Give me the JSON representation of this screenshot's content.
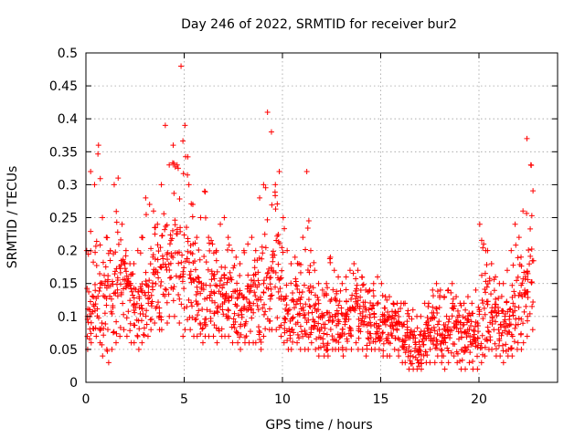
{
  "chart_data": {
    "type": "scatter",
    "title": "Day 246 of 2022, SRMTID for receiver bur2",
    "xlabel": "GPS time / hours",
    "ylabel": "SRMTID / TECUs",
    "xlim": [
      0,
      24
    ],
    "ylim": [
      0,
      0.5
    ],
    "xticks": [
      0,
      5,
      10,
      15,
      20
    ],
    "xtick_labels": [
      "0",
      "5",
      "10",
      "15",
      "20"
    ],
    "yticks": [
      0,
      0.05,
      0.1,
      0.15,
      0.2,
      0.25,
      0.3,
      0.35,
      0.4,
      0.45,
      0.5
    ],
    "ytick_labels": [
      "0",
      "0.05",
      "0.1",
      "0.15",
      "0.2",
      "0.25",
      "0.3",
      "0.35",
      "0.4",
      "0.45",
      "0.5"
    ],
    "grid": true,
    "marker": "plus",
    "color": "#ff0000",
    "series": [
      {
        "name": "SRMTID",
        "x_range": [
          0.0,
          22.8
        ],
        "x": [
          0.1,
          0.3,
          0.5,
          0.7,
          0.9,
          1.1,
          1.3,
          1.5,
          1.7,
          1.9,
          2.1,
          2.3,
          2.5,
          2.7,
          2.9,
          3.1,
          3.3,
          3.5,
          3.7,
          3.9,
          4.1,
          4.3,
          4.5,
          4.7,
          4.9,
          5.1,
          5.3,
          5.5,
          5.7,
          5.9,
          6.1,
          6.3,
          6.5,
          6.7,
          6.9,
          7.1,
          7.3,
          7.5,
          7.7,
          7.9,
          8.1,
          8.3,
          8.5,
          8.7,
          8.9,
          9.1,
          9.3,
          9.5,
          9.7,
          9.9,
          10.1,
          10.3,
          10.5,
          10.7,
          10.9,
          11.1,
          11.3,
          11.5,
          11.7,
          11.9,
          12.1,
          12.3,
          12.5,
          12.7,
          12.9,
          13.1,
          13.3,
          13.5,
          13.7,
          13.9,
          14.1,
          14.3,
          14.5,
          14.7,
          14.9,
          15.1,
          15.3,
          15.5,
          15.7,
          15.9,
          16.1,
          16.3,
          16.5,
          16.7,
          16.9,
          17.1,
          17.3,
          17.5,
          17.7,
          17.9,
          18.1,
          18.3,
          18.5,
          18.7,
          18.9,
          19.1,
          19.3,
          19.5,
          19.7,
          19.9,
          20.1,
          20.3,
          20.5,
          20.7,
          20.9,
          21.1,
          21.3,
          21.5,
          21.7,
          21.9,
          22.1,
          22.3,
          22.5,
          22.7
        ],
        "median": [
          0.09,
          0.1,
          0.11,
          0.12,
          0.11,
          0.1,
          0.11,
          0.12,
          0.13,
          0.14,
          0.13,
          0.12,
          0.11,
          0.1,
          0.11,
          0.13,
          0.15,
          0.16,
          0.15,
          0.14,
          0.15,
          0.17,
          0.18,
          0.17,
          0.14,
          0.15,
          0.16,
          0.14,
          0.12,
          0.11,
          0.12,
          0.13,
          0.12,
          0.11,
          0.12,
          0.13,
          0.12,
          0.11,
          0.1,
          0.09,
          0.1,
          0.11,
          0.12,
          0.11,
          0.1,
          0.12,
          0.14,
          0.15,
          0.14,
          0.12,
          0.1,
          0.09,
          0.1,
          0.11,
          0.1,
          0.09,
          0.1,
          0.11,
          0.1,
          0.09,
          0.08,
          0.08,
          0.09,
          0.1,
          0.09,
          0.08,
          0.09,
          0.1,
          0.11,
          0.1,
          0.09,
          0.08,
          0.09,
          0.1,
          0.09,
          0.08,
          0.07,
          0.08,
          0.09,
          0.08,
          0.07,
          0.06,
          0.05,
          0.05,
          0.04,
          0.05,
          0.06,
          0.06,
          0.07,
          0.08,
          0.07,
          0.06,
          0.07,
          0.08,
          0.07,
          0.06,
          0.06,
          0.07,
          0.06,
          0.06,
          0.08,
          0.1,
          0.11,
          0.1,
          0.09,
          0.08,
          0.07,
          0.08,
          0.09,
          0.1,
          0.11,
          0.12,
          0.14,
          0.15
        ],
        "max": [
          0.2,
          0.32,
          0.3,
          0.36,
          0.25,
          0.22,
          0.2,
          0.3,
          0.31,
          0.24,
          0.2,
          0.18,
          0.18,
          0.2,
          0.22,
          0.28,
          0.27,
          0.26,
          0.24,
          0.3,
          0.39,
          0.33,
          0.36,
          0.33,
          0.48,
          0.39,
          0.3,
          0.27,
          0.22,
          0.25,
          0.29,
          0.22,
          0.21,
          0.2,
          0.24,
          0.25,
          0.22,
          0.2,
          0.19,
          0.18,
          0.2,
          0.21,
          0.22,
          0.2,
          0.28,
          0.3,
          0.41,
          0.38,
          0.3,
          0.32,
          0.25,
          0.2,
          0.18,
          0.19,
          0.18,
          0.22,
          0.32,
          0.2,
          0.17,
          0.15,
          0.14,
          0.15,
          0.19,
          0.17,
          0.16,
          0.15,
          0.16,
          0.17,
          0.18,
          0.17,
          0.16,
          0.14,
          0.14,
          0.15,
          0.16,
          0.15,
          0.13,
          0.13,
          0.12,
          0.12,
          0.12,
          0.12,
          0.1,
          0.11,
          0.1,
          0.1,
          0.12,
          0.12,
          0.14,
          0.15,
          0.14,
          0.13,
          0.14,
          0.15,
          0.13,
          0.12,
          0.12,
          0.13,
          0.12,
          0.14,
          0.24,
          0.21,
          0.2,
          0.18,
          0.16,
          0.15,
          0.15,
          0.17,
          0.2,
          0.24,
          0.22,
          0.26,
          0.37,
          0.33
        ],
        "min": [
          0.05,
          0.06,
          0.07,
          0.06,
          0.04,
          0.03,
          0.05,
          0.06,
          0.07,
          0.08,
          0.07,
          0.06,
          0.06,
          0.05,
          0.06,
          0.07,
          0.08,
          0.09,
          0.08,
          0.08,
          0.09,
          0.1,
          0.1,
          0.09,
          0.07,
          0.08,
          0.08,
          0.07,
          0.07,
          0.06,
          0.07,
          0.07,
          0.07,
          0.06,
          0.07,
          0.07,
          0.07,
          0.06,
          0.06,
          0.05,
          0.06,
          0.06,
          0.06,
          0.06,
          0.05,
          0.07,
          0.08,
          0.08,
          0.08,
          0.07,
          0.06,
          0.05,
          0.05,
          0.06,
          0.05,
          0.05,
          0.05,
          0.06,
          0.05,
          0.04,
          0.04,
          0.04,
          0.05,
          0.05,
          0.05,
          0.04,
          0.05,
          0.05,
          0.06,
          0.05,
          0.05,
          0.04,
          0.05,
          0.05,
          0.05,
          0.04,
          0.04,
          0.04,
          0.05,
          0.04,
          0.03,
          0.03,
          0.02,
          0.02,
          0.02,
          0.02,
          0.03,
          0.03,
          0.03,
          0.04,
          0.03,
          0.02,
          0.03,
          0.04,
          0.03,
          0.02,
          0.02,
          0.03,
          0.02,
          0.02,
          0.03,
          0.04,
          0.05,
          0.05,
          0.04,
          0.04,
          0.03,
          0.04,
          0.04,
          0.05,
          0.05,
          0.06,
          0.07,
          0.08
        ]
      }
    ]
  }
}
